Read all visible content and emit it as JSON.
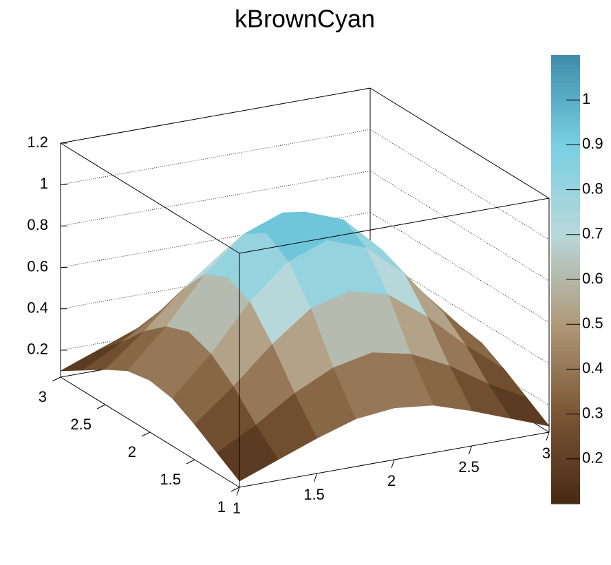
{
  "chart_data": {
    "type": "surface",
    "title": "kBrownCyan",
    "x": [
      1,
      1.25,
      1.5,
      1.75,
      2,
      2.25,
      2.5,
      2.75,
      3
    ],
    "y": [
      1,
      1.25,
      1.5,
      1.75,
      2,
      2.25,
      2.5,
      2.75,
      3
    ],
    "z": [
      [
        0.1,
        0.17,
        0.24,
        0.3,
        0.32,
        0.3,
        0.24,
        0.17,
        0.1
      ],
      [
        0.17,
        0.27,
        0.39,
        0.48,
        0.52,
        0.48,
        0.39,
        0.27,
        0.17
      ],
      [
        0.24,
        0.39,
        0.56,
        0.7,
        0.75,
        0.7,
        0.56,
        0.39,
        0.24
      ],
      [
        0.3,
        0.48,
        0.7,
        0.86,
        0.93,
        0.86,
        0.7,
        0.48,
        0.3
      ],
      [
        0.32,
        0.52,
        0.75,
        0.93,
        1.0,
        0.93,
        0.75,
        0.52,
        0.32
      ],
      [
        0.3,
        0.48,
        0.7,
        0.86,
        0.93,
        0.86,
        0.7,
        0.48,
        0.3
      ],
      [
        0.24,
        0.39,
        0.56,
        0.7,
        0.75,
        0.7,
        0.56,
        0.39,
        0.24
      ],
      [
        0.17,
        0.27,
        0.39,
        0.48,
        0.52,
        0.48,
        0.39,
        0.27,
        0.17
      ],
      [
        0.1,
        0.17,
        0.24,
        0.3,
        0.32,
        0.3,
        0.24,
        0.17,
        0.1
      ]
    ],
    "xlim": [
      1,
      3
    ],
    "ylim": [
      1,
      3
    ],
    "zlim": [
      0.07,
      1.2
    ],
    "xticks": [
      1,
      1.5,
      2,
      2.5,
      3
    ],
    "yticks": [
      1,
      1.5,
      2,
      2.5,
      3
    ],
    "zticks": [
      0.2,
      0.4,
      0.6,
      0.8,
      1,
      1.2
    ],
    "clim": [
      0.1,
      1.1
    ],
    "cticks": [
      0.2,
      0.3,
      0.4,
      0.5,
      0.6,
      0.7,
      0.8,
      0.9,
      1
    ],
    "palette": [
      "#472a15",
      "#7a5535",
      "#b09878",
      "#b8d8da",
      "#78cfe2",
      "#3f8cab"
    ],
    "grid": true
  }
}
